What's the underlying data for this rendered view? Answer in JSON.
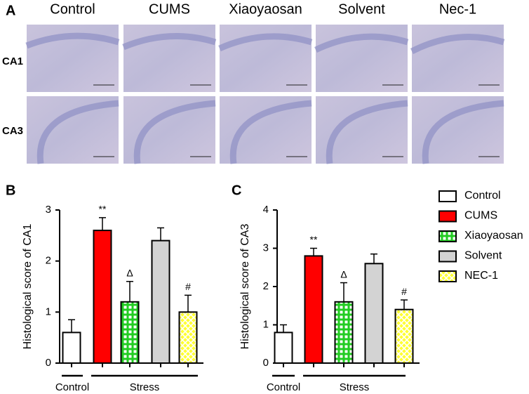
{
  "panel_a": {
    "label": "A",
    "columns": [
      "Control",
      "CUMS",
      "Xiaoyaosan",
      "Solvent",
      "Nec-1"
    ],
    "rows": [
      "CA1",
      "CA3"
    ]
  },
  "legend": {
    "entries": [
      {
        "name": "Control",
        "color": "#ffffff",
        "pattern": "solid"
      },
      {
        "name": "CUMS",
        "color": "#ff0000",
        "pattern": "solid"
      },
      {
        "name": "Xiaoyaosan",
        "color": "#22cc22",
        "pattern": "grid"
      },
      {
        "name": "Solvent",
        "color": "#d3d3d3",
        "pattern": "solid"
      },
      {
        "name": "NEC-1",
        "color": "#ffff33",
        "pattern": "crosshatch"
      }
    ]
  },
  "chart_data": [
    {
      "type": "bar",
      "panel": "B",
      "ylabel": "Histological score of CA1",
      "values": [
        0.6,
        2.6,
        1.2,
        2.4,
        1.0
      ],
      "errors": [
        0.25,
        0.25,
        0.4,
        0.25,
        0.33
      ],
      "ylim": [
        0,
        3
      ],
      "yticks": [
        0,
        1,
        2,
        3
      ],
      "annotations": [
        {
          "bar": "CUMS",
          "text": "**"
        },
        {
          "bar": "Xiaoyaosan",
          "text": "Δ"
        },
        {
          "bar": "NEC-1",
          "text": "#"
        }
      ],
      "groups": [
        {
          "label": "Control",
          "size": 1
        },
        {
          "label": "Stress",
          "size": 4
        }
      ]
    },
    {
      "type": "bar",
      "panel": "C",
      "ylabel": "Histological score of CA3",
      "values": [
        0.8,
        2.8,
        1.6,
        2.6,
        1.4
      ],
      "errors": [
        0.2,
        0.2,
        0.5,
        0.25,
        0.25
      ],
      "ylim": [
        0,
        4
      ],
      "yticks": [
        0,
        1,
        2,
        3,
        4
      ],
      "annotations": [
        {
          "bar": "CUMS",
          "text": "**"
        },
        {
          "bar": "Xiaoyaosan",
          "text": "Δ"
        },
        {
          "bar": "NEC-1",
          "text": "#"
        }
      ],
      "groups": [
        {
          "label": "Control",
          "size": 1
        },
        {
          "label": "Stress",
          "size": 4
        }
      ]
    }
  ]
}
